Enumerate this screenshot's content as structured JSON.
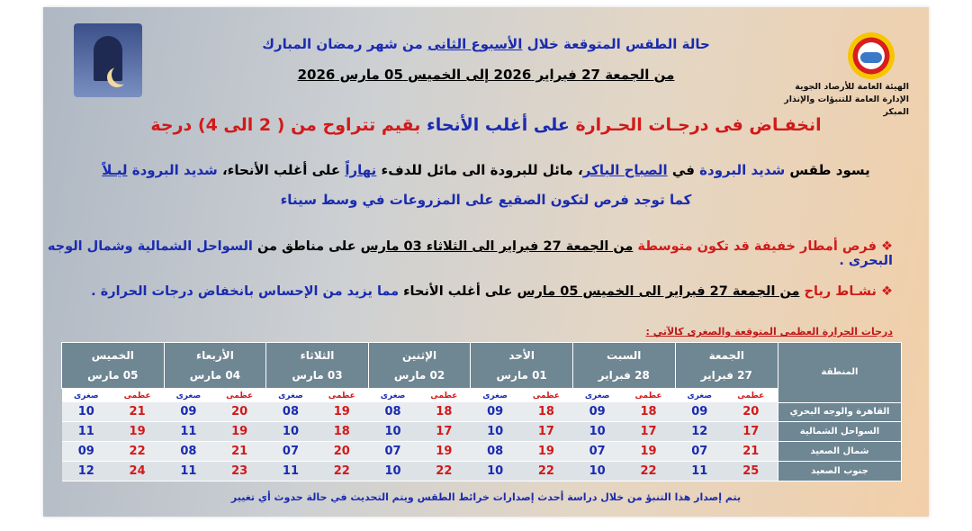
{
  "colors": {
    "red": "#d11a1a",
    "blue": "#1a2bb0",
    "black": "#000000",
    "header_bg": "#6f8693"
  },
  "org": {
    "line1": "الهيئة العامة للأرصاد الجوية",
    "line2": "الإدارة العامة للتنبؤات والإنذار المبكر",
    "logo": "egyptian-meteorological-authority-logo"
  },
  "title": {
    "pre": "حالة الطقس المتوقعة خلال ",
    "week": "الأسبوع الثانى",
    "post": " من شهر رمضان المبارك"
  },
  "period": "من  الجمعة 27 فبراير 2026  إلى  الخميس 05 مارس  2026",
  "headline": [
    {
      "t": "انخفـاض فى درجـات الحـرارة ",
      "c": "red"
    },
    {
      "t": "على أغلب الأنحاء ",
      "c": "blue"
    },
    {
      "t": "بقيم تتراوح من ( 2 الى 4) درجة",
      "c": "red"
    }
  ],
  "line1": [
    {
      "t": "يسود طقس ",
      "c": "black"
    },
    {
      "t": "شديد البرودة ",
      "c": "blue"
    },
    {
      "t": "في ",
      "c": "black"
    },
    {
      "t": "الصباح الباكر",
      "c": "blue",
      "u": true
    },
    {
      "t": "، مائل للبرودة الى مائل للدفء ",
      "c": "black"
    },
    {
      "t": "نهاراً",
      "c": "blue",
      "u": true
    },
    {
      "t": " على أغلب الأنحاء، ",
      "c": "black"
    },
    {
      "t": "شديد البرودة ",
      "c": "blue"
    },
    {
      "t": "ليـلاً",
      "c": "blue",
      "u": true
    }
  ],
  "line2": "كما توجد فرص لتكون الصقيع على المزروعات في وسط سيناء",
  "bullet1": [
    {
      "t": "❖ فرص أمطار خفيفة قد تكون متوسطة ",
      "c": "red"
    },
    {
      "t": "من الجمعة 27 فبراير الى الثلاثاء 03 مارس",
      "c": "black",
      "u": true
    },
    {
      "t": " على مناطق من ",
      "c": "black"
    },
    {
      "t": "السواحل الشمالية وشمال الوجه البحرى .",
      "c": "blue"
    }
  ],
  "bullet2": [
    {
      "t": "❖ نشـاط رياح ",
      "c": "red"
    },
    {
      "t": "من الجمعة 27 فبراير الى الخميس 05 مارس",
      "c": "black",
      "u": true
    },
    {
      "t": " على أغلب الأنحاء ",
      "c": "black"
    },
    {
      "t": "مما يزيد من  الإحساس بانخفاض درجات الحرارة .",
      "c": "blue"
    }
  ],
  "table": {
    "caption": "درجات الحرارة العظمى المتوقعة والصغرى كالآتي :",
    "region_header": "المنطقة",
    "max_label": "عظمى",
    "min_label": "صغرى",
    "days": [
      {
        "name": "الجمعة",
        "date": "27 فبراير"
      },
      {
        "name": "السبت",
        "date": "28 فبراير"
      },
      {
        "name": "الأحد",
        "date": "01 مارس"
      },
      {
        "name": "الإثنين",
        "date": "02 مارس"
      },
      {
        "name": "الثلاثاء",
        "date": "03 مارس"
      },
      {
        "name": "الأربعاء",
        "date": "04 مارس"
      },
      {
        "name": "الخميس",
        "date": "05 مارس"
      }
    ],
    "rows": [
      {
        "region": "القاهرة والوجه البحري",
        "max": [
          "20",
          "18",
          "18",
          "18",
          "19",
          "20",
          "21"
        ],
        "min": [
          "09",
          "09",
          "09",
          "08",
          "08",
          "09",
          "10"
        ]
      },
      {
        "region": "السواحل الشمالية",
        "max": [
          "17",
          "17",
          "17",
          "17",
          "18",
          "19",
          "19"
        ],
        "min": [
          "12",
          "10",
          "10",
          "10",
          "10",
          "11",
          "11"
        ]
      },
      {
        "region": "شمال الصعيد",
        "max": [
          "21",
          "19",
          "19",
          "19",
          "20",
          "21",
          "22"
        ],
        "min": [
          "07",
          "07",
          "08",
          "07",
          "07",
          "08",
          "09"
        ]
      },
      {
        "region": "جنوب الصعيد",
        "max": [
          "25",
          "22",
          "22",
          "22",
          "22",
          "23",
          "24"
        ],
        "min": [
          "11",
          "10",
          "10",
          "10",
          "11",
          "11",
          "12"
        ]
      }
    ]
  },
  "footer": "يتم إصدار هذا التنبؤ من خلال دراسة أحدث إصدارات خرائط الطقس ويتم التحديث في حالة حدوث أي تغيير"
}
